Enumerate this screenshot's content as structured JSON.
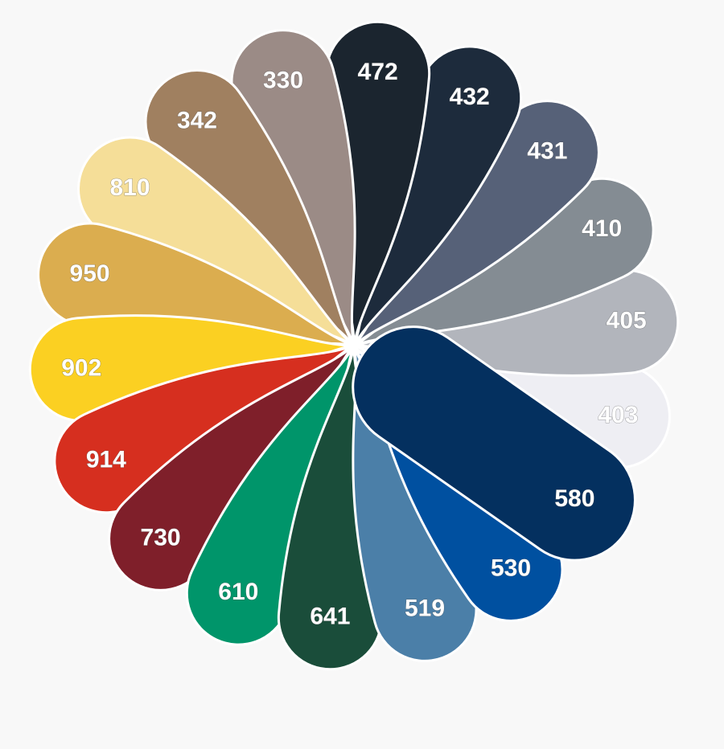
{
  "swatches": [
    {
      "label": "403",
      "color": "#eeeef3"
    },
    {
      "label": "405",
      "color": "#b2b5bc"
    },
    {
      "label": "410",
      "color": "#848c93"
    },
    {
      "label": "431",
      "color": "#566178"
    },
    {
      "label": "432",
      "color": "#1d2b3c"
    },
    {
      "label": "472",
      "color": "#1b252f"
    },
    {
      "label": "330",
      "color": "#9b8b86"
    },
    {
      "label": "342",
      "color": "#a08060"
    },
    {
      "label": "810",
      "color": "#f5de98"
    },
    {
      "label": "950",
      "color": "#dbad4f"
    },
    {
      "label": "902",
      "color": "#fbd022"
    },
    {
      "label": "914",
      "color": "#d62f1f"
    },
    {
      "label": "730",
      "color": "#7f1f2a"
    },
    {
      "label": "610",
      "color": "#00956a"
    },
    {
      "label": "641",
      "color": "#1a4d3a"
    },
    {
      "label": "519",
      "color": "#4b7fa8"
    },
    {
      "label": "530",
      "color": "#0050a0"
    },
    {
      "label": "580",
      "color": "#04305f"
    }
  ]
}
